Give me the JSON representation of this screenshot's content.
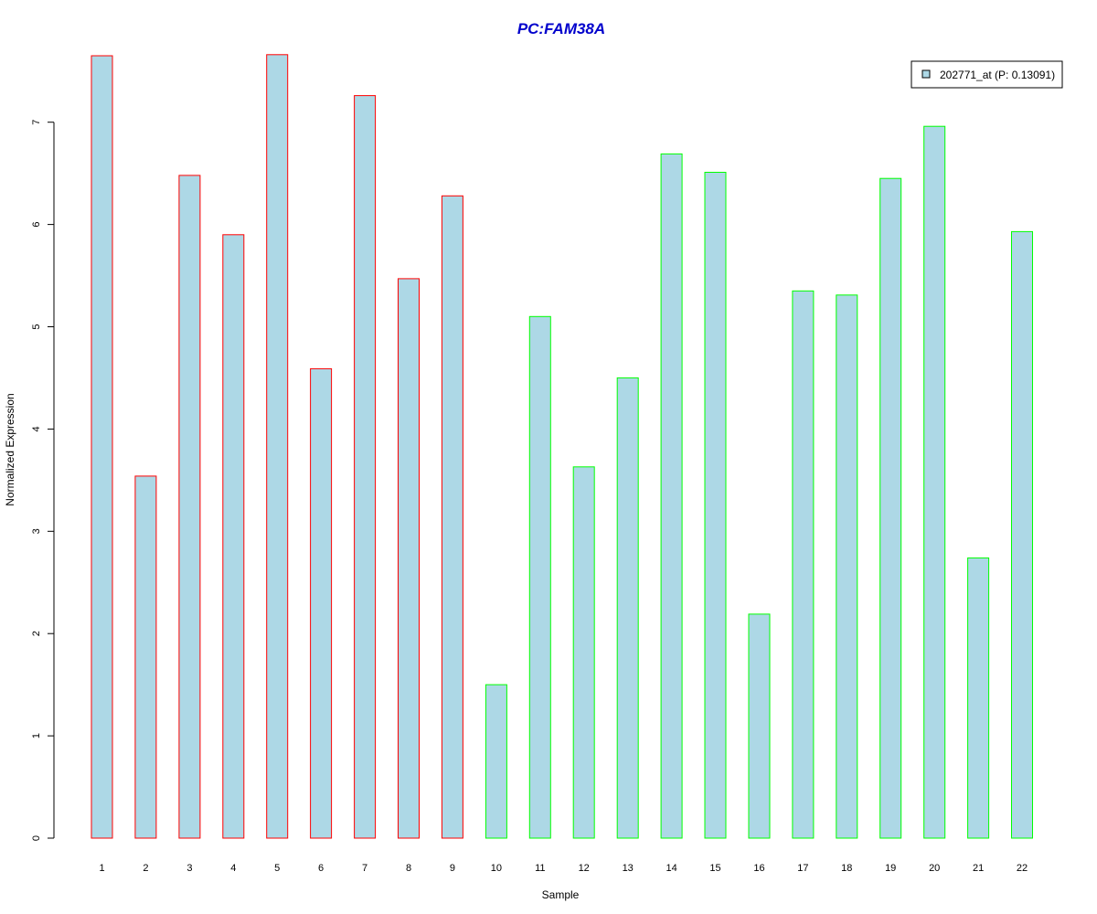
{
  "chart_data": {
    "type": "bar",
    "title": "PC:FAM38A",
    "title_color": "#0000CC",
    "xlabel": "Sample",
    "ylabel": "Normalized Expression",
    "categories": [
      "1",
      "2",
      "3",
      "4",
      "5",
      "6",
      "7",
      "8",
      "9",
      "10",
      "11",
      "12",
      "13",
      "14",
      "15",
      "16",
      "17",
      "18",
      "19",
      "20",
      "21",
      "22"
    ],
    "series": [
      {
        "name": "202771_at (P: 0.13091)",
        "values": [
          7.65,
          3.54,
          6.48,
          5.9,
          7.66,
          4.59,
          7.26,
          5.47,
          6.28,
          1.5,
          5.1,
          3.63,
          4.5,
          6.69,
          6.51,
          2.19,
          5.35,
          5.31,
          6.45,
          6.96,
          2.74,
          5.93
        ],
        "groups": [
          "red",
          "red",
          "red",
          "red",
          "red",
          "red",
          "red",
          "red",
          "red",
          "green",
          "green",
          "green",
          "green",
          "green",
          "green",
          "green",
          "green",
          "green",
          "green",
          "green",
          "green",
          "green"
        ]
      }
    ],
    "yticks": [
      "0",
      "1",
      "2",
      "3",
      "4",
      "5",
      "6",
      "7"
    ],
    "ylim": [
      0,
      7.72
    ],
    "grid": false,
    "legend_position": "top-right",
    "colors": {
      "bar_fill": "#ADD8E6",
      "red": "#FF0000",
      "green": "#00FF00",
      "axis": "#000000"
    }
  }
}
